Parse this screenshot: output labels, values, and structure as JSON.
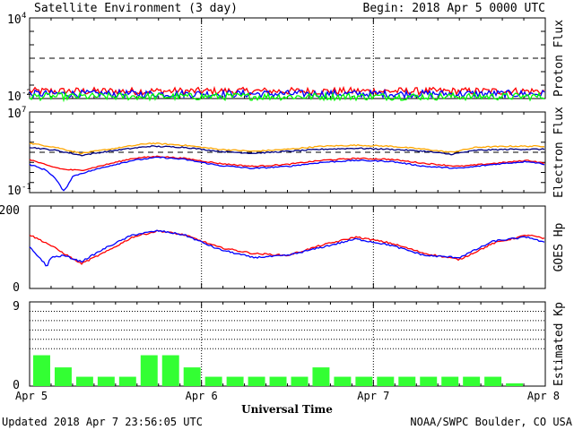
{
  "title": "Satellite Environment (3 day)",
  "begin_label": "Begin:  2018 Apr 5 0000 UTC",
  "footer_left": "Updated 2018 Apr  7 23:56:05 UTC",
  "footer_right": "NOAA/SWPC Boulder, CO USA",
  "xlabel": "Universal Time",
  "x_ticks": [
    "Apr 5",
    "Apr 6",
    "Apr 7",
    "Apr 8"
  ],
  "colors": {
    "red": "#ff0000",
    "blue": "#0000ff",
    "green": "#00ff00",
    "orange": "#ffa500",
    "navy": "#000080",
    "kp_bar": "#33ff33"
  },
  "chart_data": [
    {
      "type": "line",
      "ylabel": "Proton Flux",
      "scale": "log",
      "ylim_exponent": [
        -2,
        4
      ],
      "y_ticks": [
        {
          "base": "10",
          "exp": "4",
          "at": 4
        },
        {
          "base": "10",
          "exp": "-2",
          "at": -2
        }
      ],
      "threshold_log": 1,
      "x_days": [
        0,
        3
      ],
      "series": [
        {
          "color": "red",
          "approx_log": -1.45
        },
        {
          "color": "blue",
          "approx_log": -1.65
        },
        {
          "color": "green",
          "approx_log": -1.85
        }
      ]
    },
    {
      "type": "line",
      "ylabel": "Electron Flux",
      "scale": "log",
      "ylim_exponent": [
        -1,
        7
      ],
      "y_ticks": [
        {
          "base": "10",
          "exp": "7",
          "at": 7
        },
        {
          "base": "10",
          "exp": "-1",
          "at": -1
        }
      ],
      "threshold_log": 3,
      "series": [
        {
          "color": "orange",
          "x": [
            0,
            0.15,
            0.3,
            0.5,
            0.7,
            0.9,
            1.1,
            1.3,
            1.5,
            1.7,
            1.9,
            2.1,
            2.3,
            2.45,
            2.6,
            2.8,
            3.0
          ],
          "y": [
            3.9,
            3.5,
            2.9,
            3.4,
            3.9,
            3.7,
            3.3,
            3.1,
            3.3,
            3.6,
            3.7,
            3.6,
            3.3,
            3.0,
            3.5,
            3.6,
            3.6
          ]
        },
        {
          "color": "navy",
          "x": [
            0,
            0.15,
            0.3,
            0.5,
            0.7,
            0.9,
            1.1,
            1.3,
            1.5,
            1.7,
            1.9,
            2.1,
            2.3,
            2.45,
            2.6,
            2.8,
            3.0
          ],
          "y": [
            3.5,
            3.2,
            2.7,
            3.2,
            3.6,
            3.5,
            3.1,
            2.9,
            3.1,
            3.3,
            3.4,
            3.3,
            3.1,
            2.8,
            3.2,
            3.3,
            3.3
          ]
        },
        {
          "color": "red",
          "x": [
            0,
            0.1,
            0.2,
            0.3,
            0.45,
            0.6,
            0.75,
            0.9,
            1.1,
            1.3,
            1.5,
            1.7,
            1.9,
            2.1,
            2.3,
            2.5,
            2.7,
            2.9,
            3.0
          ],
          "y": [
            2.3,
            1.7,
            1.3,
            1.2,
            1.8,
            2.4,
            2.6,
            2.4,
            1.9,
            1.6,
            1.8,
            2.2,
            2.4,
            2.3,
            1.9,
            1.6,
            1.9,
            2.2,
            1.9
          ]
        },
        {
          "color": "blue",
          "x": [
            0,
            0.1,
            0.15,
            0.2,
            0.25,
            0.3,
            0.45,
            0.6,
            0.75,
            0.9,
            1.1,
            1.3,
            1.5,
            1.7,
            1.9,
            2.1,
            2.3,
            2.5,
            2.7,
            2.9,
            3.0
          ],
          "y": [
            1.8,
            1.2,
            0.4,
            -0.9,
            0.6,
            0.9,
            1.6,
            2.2,
            2.5,
            2.3,
            1.7,
            1.4,
            1.6,
            2.0,
            2.2,
            2.1,
            1.6,
            1.4,
            1.8,
            2.1,
            1.8
          ]
        }
      ]
    },
    {
      "type": "line",
      "ylabel": "GOES Hp",
      "ylim": [
        0,
        200
      ],
      "y_ticks": [
        "200",
        "0"
      ],
      "series": [
        {
          "color": "red",
          "x": [
            0,
            0.1,
            0.2,
            0.3,
            0.45,
            0.6,
            0.75,
            0.9,
            1.1,
            1.3,
            1.5,
            1.7,
            1.9,
            2.1,
            2.3,
            2.5,
            2.7,
            2.9,
            3.0
          ],
          "y": [
            130,
            110,
            85,
            60,
            90,
            125,
            140,
            130,
            100,
            85,
            80,
            105,
            125,
            110,
            85,
            70,
            110,
            130,
            120
          ]
        },
        {
          "color": "blue",
          "x": [
            0,
            0.08,
            0.1,
            0.12,
            0.2,
            0.3,
            0.45,
            0.6,
            0.75,
            0.9,
            1.1,
            1.3,
            1.5,
            1.7,
            1.9,
            2.1,
            2.3,
            2.5,
            2.7,
            2.9,
            3.0
          ],
          "y": [
            100,
            65,
            50,
            75,
            80,
            65,
            100,
            130,
            140,
            130,
            95,
            75,
            80,
            100,
            120,
            105,
            80,
            75,
            115,
            125,
            110
          ]
        }
      ]
    },
    {
      "type": "bar",
      "ylabel": "Estimated Kp",
      "ylim": [
        0,
        9
      ],
      "y_ticks": [
        "9",
        "0"
      ],
      "gridlines": [
        4,
        5,
        6,
        7,
        8,
        9
      ],
      "values": [
        3.3,
        2.0,
        1.0,
        1.0,
        1.0,
        3.3,
        3.3,
        2.0,
        1.0,
        1.0,
        1.0,
        1.0,
        1.0,
        2.0,
        1.0,
        1.0,
        1.0,
        1.0,
        1.0,
        1.0,
        1.0,
        1.0,
        0.3
      ]
    }
  ]
}
